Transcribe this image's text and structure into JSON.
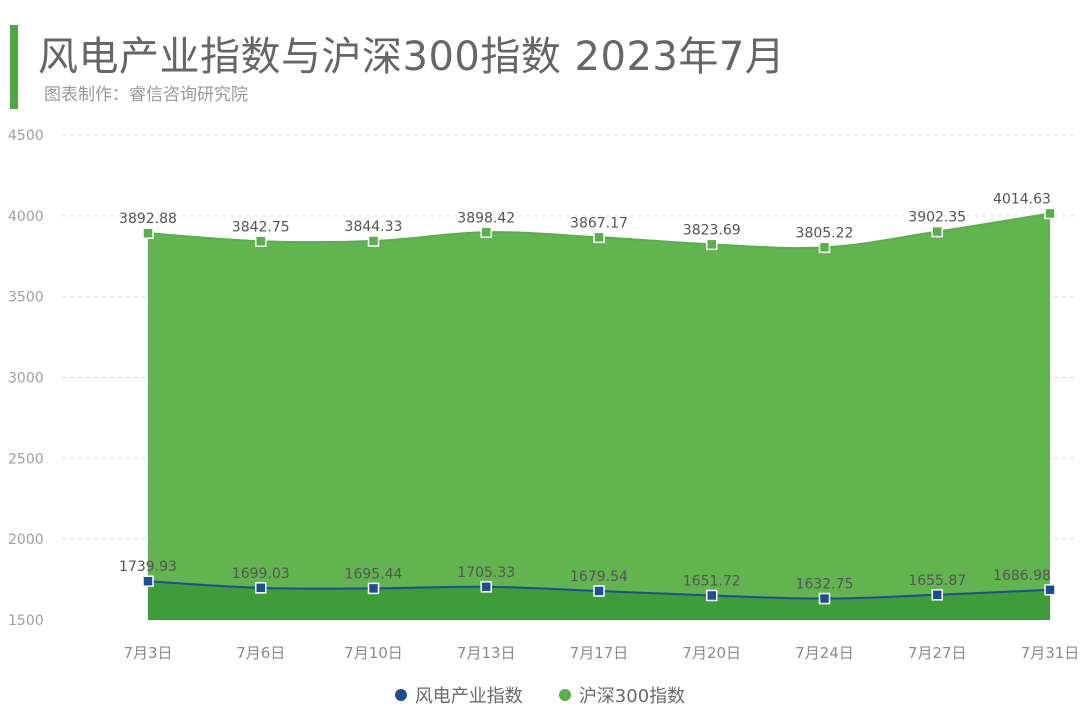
{
  "header": {
    "title": "风电产业指数与沪深300指数 2023年7月",
    "subtitle": "图表制作：睿信咨询研究院"
  },
  "colors": {
    "accent": "#4aaa3e",
    "wind": "#1f4e8c",
    "wind_fill": "#3f9c3a",
    "csi": "#5aae4c",
    "csi_fill": "#62b450",
    "grid": "#dddddd"
  },
  "legend": {
    "wind_label": "风电产业指数",
    "csi_label": "沪深300指数"
  },
  "chart_data": {
    "type": "area",
    "categories": [
      "7月3日",
      "7月6日",
      "7月10日",
      "7月13日",
      "7月17日",
      "7月20日",
      "7月24日",
      "7月27日",
      "7月31日"
    ],
    "series": [
      {
        "name": "风电产业指数",
        "values": [
          1739.93,
          1699.03,
          1695.44,
          1705.33,
          1679.54,
          1651.72,
          1632.75,
          1655.87,
          1686.98
        ],
        "labels": [
          "1739.93",
          "1699.03",
          "1695.44",
          "1705.33",
          "1679.54",
          "1651.72",
          "1632.75",
          "1655.87",
          "1686.98"
        ]
      },
      {
        "name": "沪深300指数",
        "values": [
          3892.88,
          3842.75,
          3844.33,
          3898.42,
          3867.17,
          3823.69,
          3805.22,
          3902.35,
          4014.63
        ],
        "labels": [
          "3892.88",
          "3842.75",
          "3844.33",
          "3898.42",
          "3867.17",
          "3823.69",
          "3805.22",
          "3902.35",
          "4014.63"
        ]
      }
    ],
    "ylim": [
      1500,
      4500
    ],
    "yticks": [
      "1500",
      "2000",
      "2500",
      "3000",
      "3500",
      "4000",
      "4500"
    ],
    "grid": true,
    "legend_position": "bottom"
  }
}
